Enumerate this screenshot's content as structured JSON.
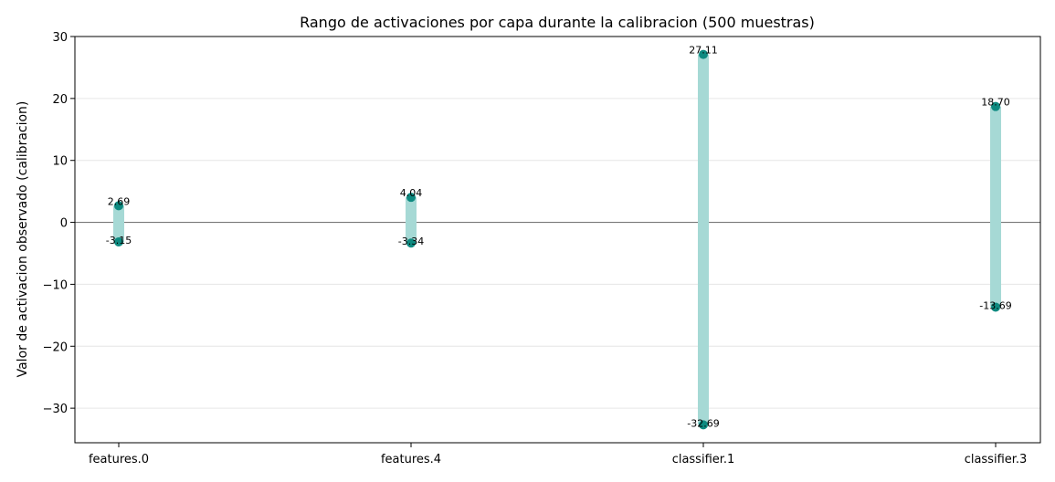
{
  "chart_data": {
    "type": "range",
    "title": "Rango de activaciones por capa durante la calibracion (500 muestras)",
    "xlabel": "",
    "ylabel": "Valor de activacion observado (calibracion)",
    "ylim": [
      -35.58,
      30.0
    ],
    "yticks": [
      30,
      20,
      10,
      0,
      -10,
      -20,
      -30
    ],
    "ytick_labels": [
      "30",
      "20",
      "10",
      "0",
      "−10",
      "−20",
      "−30"
    ],
    "categories": [
      "features.0",
      "features.4",
      "classifier.1",
      "classifier.3"
    ],
    "series": [
      {
        "min": [
          -3.15,
          -3.34,
          -32.69,
          -13.69
        ],
        "max": [
          2.69,
          4.04,
          27.11,
          18.7
        ]
      }
    ],
    "min_labels": [
      "-3.15",
      "-3.34",
      "-32.69",
      "-13.69"
    ],
    "max_labels": [
      "2.69",
      "4.04",
      "27.11",
      "18.70"
    ],
    "grid": "y",
    "zero_line": true,
    "colors": {
      "range_bar": "#a6d9d5",
      "marker": "#0e8a80",
      "zero_line": "#777777",
      "grid": "#e6e6e6"
    }
  }
}
